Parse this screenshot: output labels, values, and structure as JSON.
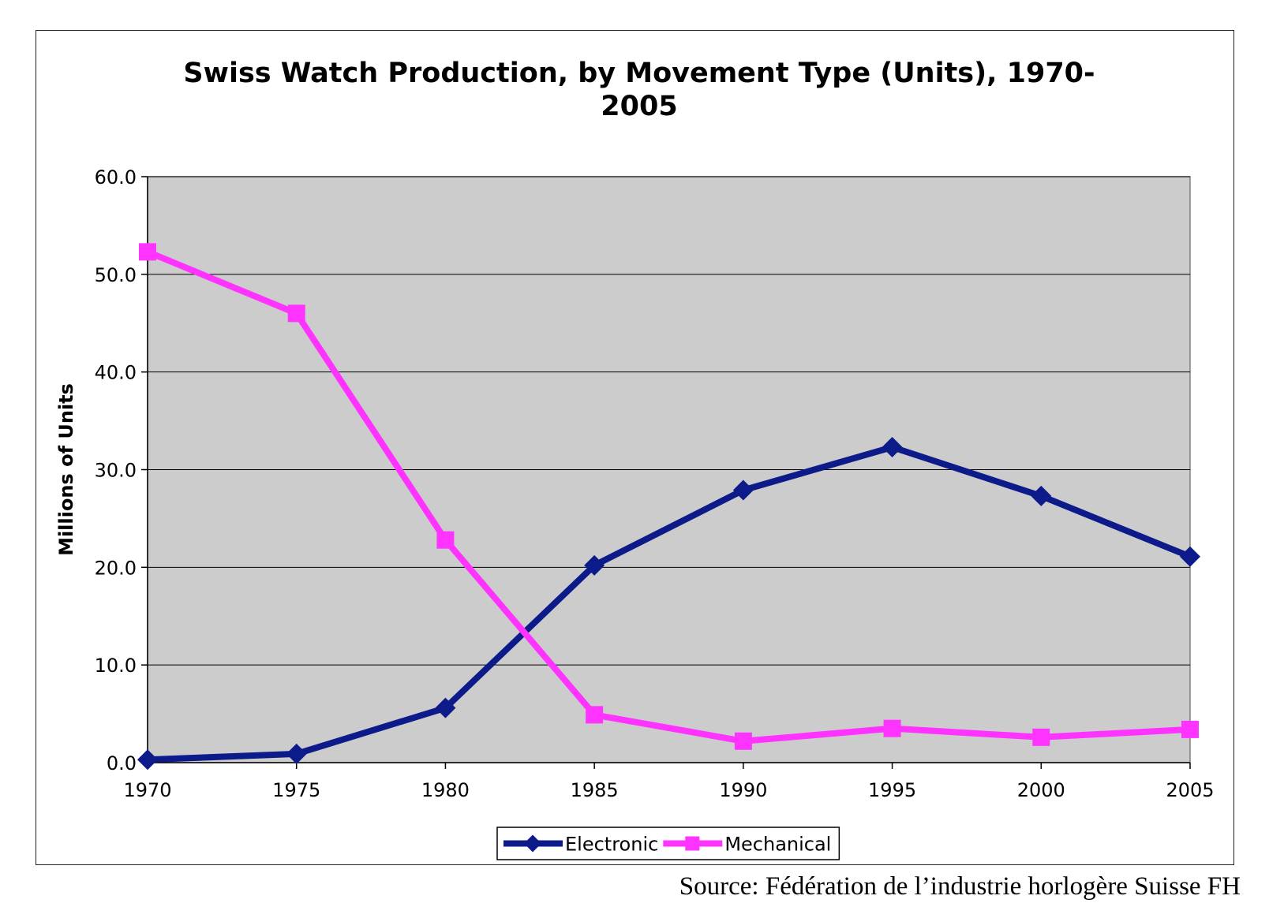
{
  "chart_data": {
    "type": "line",
    "title_lines": [
      "Swiss Watch Production, by Movement Type (Units), 1970-",
      "2005"
    ],
    "ylabel": "Millions of Units",
    "xlabel": "",
    "categories": [
      "1970",
      "1975",
      "1980",
      "1985",
      "1990",
      "1995",
      "2000",
      "2005"
    ],
    "ylim": [
      0,
      60
    ],
    "yticks": [
      "0.0",
      "10.0",
      "20.0",
      "30.0",
      "40.0",
      "50.0",
      "60.0"
    ],
    "ytick_values": [
      0,
      10,
      20,
      30,
      40,
      50,
      60
    ],
    "grid": true,
    "legend_position": "bottom",
    "plot_background": "#cccccc",
    "series": [
      {
        "name": "Electronic",
        "color": "#0d1a8a",
        "marker": "diamond",
        "values": [
          0.3,
          0.9,
          5.6,
          20.2,
          27.9,
          32.3,
          27.3,
          21.1
        ]
      },
      {
        "name": "Mechanical",
        "color": "#ff33ff",
        "marker": "square",
        "values": [
          52.3,
          46.0,
          22.8,
          4.9,
          2.2,
          3.5,
          2.6,
          3.4
        ]
      }
    ]
  },
  "source": "Source: Fédération de l’industrie horlogère Suisse FH"
}
